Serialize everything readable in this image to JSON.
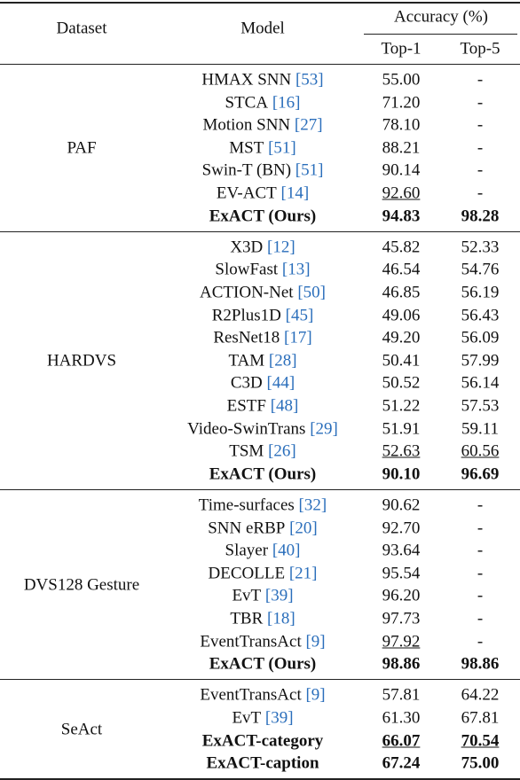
{
  "header": {
    "dataset": "Dataset",
    "model": "Model",
    "accuracy": "Accuracy (%)",
    "top1": "Top-1",
    "top5": "Top-5"
  },
  "groups": [
    {
      "dataset": "PAF",
      "rows": [
        {
          "model": "HMAX SNN",
          "cite": "[53]",
          "top1": "55.00",
          "top5": "-"
        },
        {
          "model": "STCA",
          "cite": "[16]",
          "top1": "71.20",
          "top5": "-"
        },
        {
          "model": "Motion SNN",
          "cite": "[27]",
          "top1": "78.10",
          "top5": "-"
        },
        {
          "model": "MST",
          "cite": "[51]",
          "top1": "88.21",
          "top5": "-"
        },
        {
          "model": "Swin-T (BN)",
          "cite": "[51]",
          "top1": "90.14",
          "top5": "-"
        },
        {
          "model": "EV-ACT",
          "cite": "[14]",
          "top1": "92.60",
          "top5": "-",
          "underline_top1": true
        },
        {
          "model": "ExACT (Ours)",
          "top1": "94.83",
          "top5": "98.28",
          "bold": true
        }
      ]
    },
    {
      "dataset": "HARDVS",
      "rows": [
        {
          "model": "X3D",
          "cite": "[12]",
          "top1": "45.82",
          "top5": "52.33"
        },
        {
          "model": "SlowFast",
          "cite": "[13]",
          "top1": "46.54",
          "top5": "54.76"
        },
        {
          "model": "ACTION-Net",
          "cite": "[50]",
          "top1": "46.85",
          "top5": "56.19"
        },
        {
          "model": "R2Plus1D",
          "cite": "[45]",
          "top1": "49.06",
          "top5": "56.43"
        },
        {
          "model": "ResNet18",
          "cite": "[17]",
          "top1": "49.20",
          "top5": "56.09"
        },
        {
          "model": "TAM",
          "cite": "[28]",
          "top1": "50.41",
          "top5": "57.99"
        },
        {
          "model": "C3D",
          "cite": "[44]",
          "top1": "50.52",
          "top5": "56.14"
        },
        {
          "model": "ESTF",
          "cite": "[48]",
          "top1": "51.22",
          "top5": "57.53"
        },
        {
          "model": "Video-SwinTrans",
          "cite": "[29]",
          "top1": "51.91",
          "top5": "59.11"
        },
        {
          "model": "TSM",
          "cite": "[26]",
          "top1": "52.63",
          "top5": "60.56",
          "underline_top1": true,
          "underline_top5": true
        },
        {
          "model": "ExACT (Ours)",
          "top1": "90.10",
          "top5": "96.69",
          "bold": true
        }
      ]
    },
    {
      "dataset": "DVS128 Gesture",
      "rows": [
        {
          "model": "Time-surfaces",
          "cite": "[32]",
          "top1": "90.62",
          "top5": "-"
        },
        {
          "model": "SNN eRBP",
          "cite": "[20]",
          "top1": "92.70",
          "top5": "-"
        },
        {
          "model": "Slayer",
          "cite": "[40]",
          "top1": "93.64",
          "top5": "-"
        },
        {
          "model": "DECOLLE",
          "cite": "[21]",
          "top1": "95.54",
          "top5": "-"
        },
        {
          "model": "EvT",
          "cite": "[39]",
          "top1": "96.20",
          "top5": "-"
        },
        {
          "model": "TBR",
          "cite": "[18]",
          "top1": "97.73",
          "top5": "-"
        },
        {
          "model": "EventTransAct",
          "cite": "[9]",
          "top1": "97.92",
          "top5": "-",
          "underline_top1": true
        },
        {
          "model": "ExACT (Ours)",
          "top1": "98.86",
          "top5": "98.86",
          "bold": true
        }
      ]
    },
    {
      "dataset": "SeAct",
      "rows": [
        {
          "model": "EventTransAct",
          "cite": "[9]",
          "top1": "57.81",
          "top5": "64.22"
        },
        {
          "model": "EvT",
          "cite": "[39]",
          "top1": "61.30",
          "top5": "67.81"
        },
        {
          "model": "ExACT-category",
          "top1": "66.07",
          "top5": "70.54",
          "bold": true,
          "underline_top1": true,
          "underline_top5": true
        },
        {
          "model": "ExACT-caption",
          "top1": "67.24",
          "top5": "75.00",
          "bold": true
        }
      ]
    }
  ]
}
